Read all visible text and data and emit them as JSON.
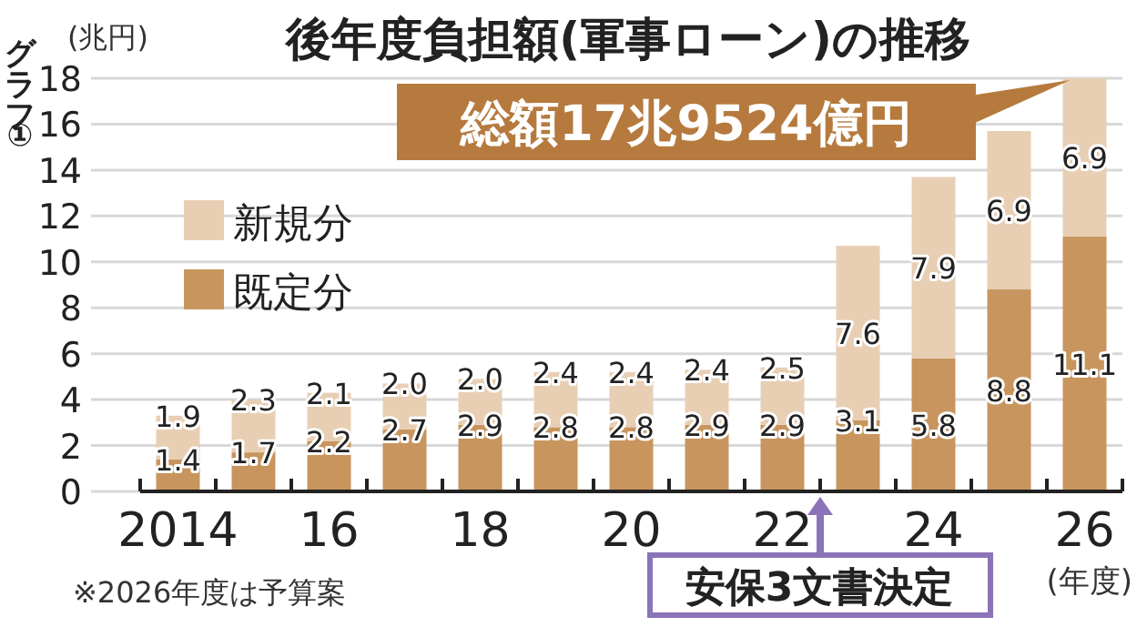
{
  "chart_data": {
    "type": "bar",
    "title": "後年度負担額(軍事ローン)の推移",
    "ylabel": "(兆円)",
    "xlabel": "(年度)",
    "categories": [
      "2014",
      null,
      "16",
      null,
      "18",
      null,
      "20",
      null,
      "22",
      null,
      "24",
      null,
      "26"
    ],
    "series": [
      {
        "name": "既定分",
        "color": "#c8955e",
        "values": [
          1.4,
          1.7,
          2.2,
          2.7,
          2.9,
          2.8,
          2.8,
          2.9,
          2.9,
          3.1,
          5.8,
          8.8,
          11.1
        ],
        "value_labels": [
          "1.4",
          "1.7",
          "2.2",
          "2.7",
          "2.9",
          "2.8",
          "2.8",
          "2.9",
          "2.9",
          "3.1",
          "5.8",
          "8.8",
          "11.1"
        ]
      },
      {
        "name": "新規分",
        "color": "#e8cfb4",
        "values": [
          1.9,
          2.3,
          2.1,
          2.0,
          2.0,
          2.4,
          2.4,
          2.4,
          2.5,
          7.6,
          7.9,
          6.9,
          6.9
        ],
        "value_labels": [
          "1.9",
          "2.3",
          "2.1",
          "2.0",
          "2.0",
          "2.4",
          "2.4",
          "2.4",
          "2.5",
          "7.6",
          "7.9",
          "6.9",
          "6.9"
        ]
      }
    ],
    "stacked": true,
    "ylim": [
      0,
      18
    ],
    "yticks": [
      0,
      2,
      4,
      6,
      8,
      10,
      12,
      14,
      16,
      18
    ],
    "grid": "y",
    "legend": "top left",
    "annotations": [
      "グラフ①",
      "総額17兆9524億円",
      "安保3文書決定",
      "※2026年度は予算案"
    ]
  }
}
